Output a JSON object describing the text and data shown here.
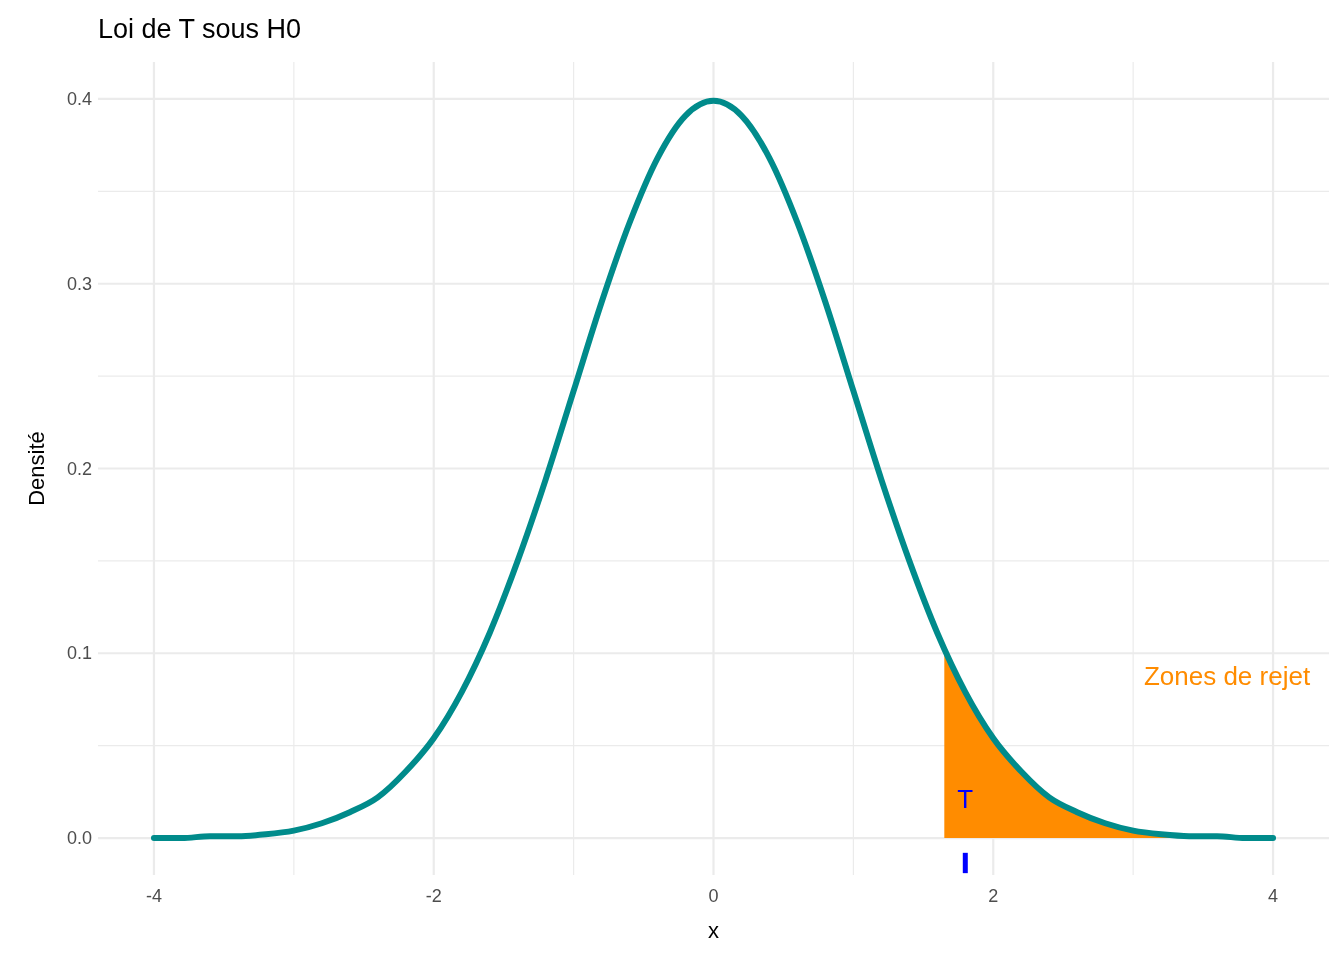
{
  "chart_data": {
    "type": "line",
    "title": "Loi de T sous H0",
    "xlabel": "x",
    "ylabel": "Densité",
    "xlim": [
      -4.4,
      4.4
    ],
    "ylim": [
      -0.02,
      0.42
    ],
    "xticks": [
      -4,
      {
        "value": -3,
        "label": null
      },
      -2,
      {
        "value": -1,
        "label": null
      },
      0,
      {
        "value": 1,
        "label": null
      },
      2,
      {
        "value": 3,
        "label": null
      },
      4
    ],
    "yticks": [
      {
        "value": 0,
        "label": "0.0"
      },
      {
        "value": 0.05,
        "label": null
      },
      0.1,
      {
        "value": 0.15,
        "label": null
      },
      0.2,
      {
        "value": 0.25,
        "label": null
      },
      0.3,
      {
        "value": 0.35,
        "label": null
      },
      0.4
    ],
    "grid": true,
    "annotations": [
      "Zones de rejet",
      "T"
    ],
    "series": [
      {
        "type": "area",
        "color": "#ff8c00",
        "x": [
          1.65,
          1.8,
          2.0,
          2.2,
          2.4,
          2.6,
          2.8,
          3.0,
          3.2,
          3.4,
          3.6,
          3.8
        ],
        "values": [
          0.102,
          0.079,
          0.054,
          0.036,
          0.022,
          0.014,
          0.008,
          0.004,
          0.002,
          0.001,
          0.001,
          0.0
        ]
      },
      {
        "type": "line",
        "color": "#008b8b",
        "x": [
          -4,
          -3.8,
          -3.6,
          -3.4,
          -3.2,
          -3,
          -2.8,
          -2.6,
          -2.4,
          -2.2,
          -2,
          -1.8,
          -1.6,
          -1.4,
          -1.2,
          -1,
          -0.8,
          -0.6,
          -0.4,
          -0.2,
          0,
          0.2,
          0.4,
          0.6,
          0.8,
          1,
          1.2,
          1.4,
          1.6,
          1.8,
          2,
          2.2,
          2.4,
          2.6,
          2.8,
          3,
          3.2,
          3.4,
          3.6,
          3.8,
          4
        ],
        "values": [
          0.0,
          0.0,
          0.001,
          0.001,
          0.002,
          0.004,
          0.008,
          0.014,
          0.022,
          0.036,
          0.054,
          0.079,
          0.111,
          0.15,
          0.194,
          0.242,
          0.29,
          0.333,
          0.368,
          0.391,
          0.399,
          0.391,
          0.368,
          0.333,
          0.29,
          0.242,
          0.194,
          0.15,
          0.111,
          0.079,
          0.054,
          0.036,
          0.022,
          0.014,
          0.008,
          0.004,
          0.002,
          0.001,
          0.001,
          0.0,
          0.0
        ]
      },
      {
        "color": "#0000ff",
        "x": [
          1.8,
          1.8
        ],
        "values": [
          -0.019,
          -0.008
        ]
      }
    ]
  }
}
